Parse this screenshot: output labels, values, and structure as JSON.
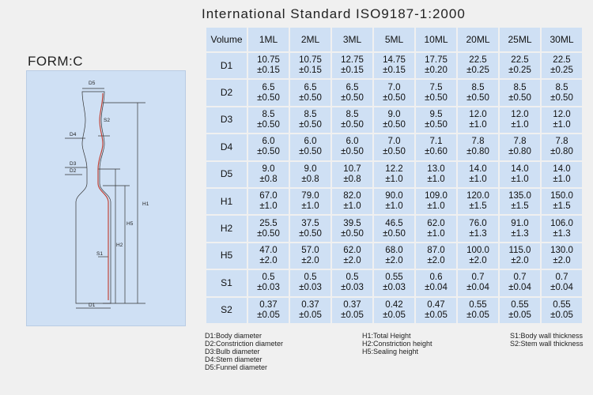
{
  "title": "International Standard ISO9187-1:2000",
  "form_label": "FORM:C",
  "drawing": {
    "labels": [
      "D5",
      "S2",
      "D4",
      "D3",
      "D2",
      "H1",
      "H5",
      "H2",
      "S1",
      "D1"
    ],
    "accent_line_color": "#c0392b"
  },
  "table": {
    "header_label": "Volume",
    "columns": [
      "1ML",
      "2ML",
      "3ML",
      "5ML",
      "10ML",
      "20ML",
      "25ML",
      "30ML"
    ],
    "rows": [
      {
        "label": "D1",
        "values": [
          [
            "10.75",
            "±0.15"
          ],
          [
            "10.75",
            "±0.15"
          ],
          [
            "12.75",
            "±0.15"
          ],
          [
            "14.75",
            "±0.15"
          ],
          [
            "17.75",
            "±0.20"
          ],
          [
            "22.5",
            "±0.25"
          ],
          [
            "22.5",
            "±0.25"
          ],
          [
            "22.5",
            "±0.25"
          ]
        ]
      },
      {
        "label": "D2",
        "values": [
          [
            "6.5",
            "±0.50"
          ],
          [
            "6.5",
            "±0.50"
          ],
          [
            "6.5",
            "±0.50"
          ],
          [
            "7.0",
            "±0.50"
          ],
          [
            "7.5",
            "±0.50"
          ],
          [
            "8.5",
            "±0.50"
          ],
          [
            "8.5",
            "±0.50"
          ],
          [
            "8.5",
            "±0.50"
          ]
        ]
      },
      {
        "label": "D3",
        "values": [
          [
            "8.5",
            "±0.50"
          ],
          [
            "8.5",
            "±0.50"
          ],
          [
            "8.5",
            "±0.50"
          ],
          [
            "9.0",
            "±0.50"
          ],
          [
            "9.5",
            "±0.50"
          ],
          [
            "12.0",
            "±1.0"
          ],
          [
            "12.0",
            "±1.0"
          ],
          [
            "12.0",
            "±1.0"
          ]
        ]
      },
      {
        "label": "D4",
        "values": [
          [
            "6.0",
            "±0.50"
          ],
          [
            "6.0",
            "±0.50"
          ],
          [
            "6.0",
            "±0.50"
          ],
          [
            "7.0",
            "±0.50"
          ],
          [
            "7.1",
            "±0.60"
          ],
          [
            "7.8",
            "±0.80"
          ],
          [
            "7.8",
            "±0.80"
          ],
          [
            "7.8",
            "±0.80"
          ]
        ]
      },
      {
        "label": "D5",
        "values": [
          [
            "9.0",
            "±0.8"
          ],
          [
            "9.0",
            "±0.8"
          ],
          [
            "10.7",
            "±0.8"
          ],
          [
            "12.2",
            "±1.0"
          ],
          [
            "13.0",
            "±1.0"
          ],
          [
            "14.0",
            "±1.0"
          ],
          [
            "14.0",
            "±1.0"
          ],
          [
            "14.0",
            "±1.0"
          ]
        ]
      },
      {
        "label": "H1",
        "values": [
          [
            "67.0",
            "±1.0"
          ],
          [
            "79.0",
            "±1.0"
          ],
          [
            "82.0",
            "±1.0"
          ],
          [
            "90.0",
            "±1.0"
          ],
          [
            "109.0",
            "±1.0"
          ],
          [
            "120.0",
            "±1.5"
          ],
          [
            "135.0",
            "±1.5"
          ],
          [
            "150.0",
            "±1.5"
          ]
        ]
      },
      {
        "label": "H2",
        "values": [
          [
            "25.5",
            "±0.50"
          ],
          [
            "37.5",
            "±0.50"
          ],
          [
            "39.5",
            "±0.50"
          ],
          [
            "46.5",
            "±0.50"
          ],
          [
            "62.0",
            "±1.0"
          ],
          [
            "76.0",
            "±1.3"
          ],
          [
            "91.0",
            "±1.3"
          ],
          [
            "106.0",
            "±1.3"
          ]
        ]
      },
      {
        "label": "H5",
        "values": [
          [
            "47.0",
            "±2.0"
          ],
          [
            "57.0",
            "±2.0"
          ],
          [
            "62.0",
            "±2.0"
          ],
          [
            "68.0",
            "±2.0"
          ],
          [
            "87.0",
            "±2.0"
          ],
          [
            "100.0",
            "±2.0"
          ],
          [
            "115.0",
            "±2.0"
          ],
          [
            "130.0",
            "±2.0"
          ]
        ]
      },
      {
        "label": "S1",
        "values": [
          [
            "0.5",
            "±0.03"
          ],
          [
            "0.5",
            "±0.03"
          ],
          [
            "0.5",
            "±0.03"
          ],
          [
            "0.55",
            "±0.03"
          ],
          [
            "0.6",
            "±0.04"
          ],
          [
            "0.7",
            "±0.04"
          ],
          [
            "0.7",
            "±0.04"
          ],
          [
            "0.7",
            "±0.04"
          ]
        ]
      },
      {
        "label": "S2",
        "values": [
          [
            "0.37",
            "±0.05"
          ],
          [
            "0.37",
            "±0.05"
          ],
          [
            "0.37",
            "±0.05"
          ],
          [
            "0.42",
            "±0.05"
          ],
          [
            "0.47",
            "±0.05"
          ],
          [
            "0.55",
            "±0.05"
          ],
          [
            "0.55",
            "±0.05"
          ],
          [
            "0.55",
            "±0.05"
          ]
        ]
      }
    ]
  },
  "legend": {
    "col1": [
      "D1:Body diameter",
      "D2:Constriction diameter",
      "D3:Bulb diameter",
      "D4:Stem diameter",
      "D5:Funnel diameter"
    ],
    "col2": [
      "H1:Total Height",
      "H2:Constriction height",
      "H5:Sealing height"
    ],
    "col3": [
      "S1:Body wall thickness",
      "S2:Stem wall thickness"
    ]
  }
}
